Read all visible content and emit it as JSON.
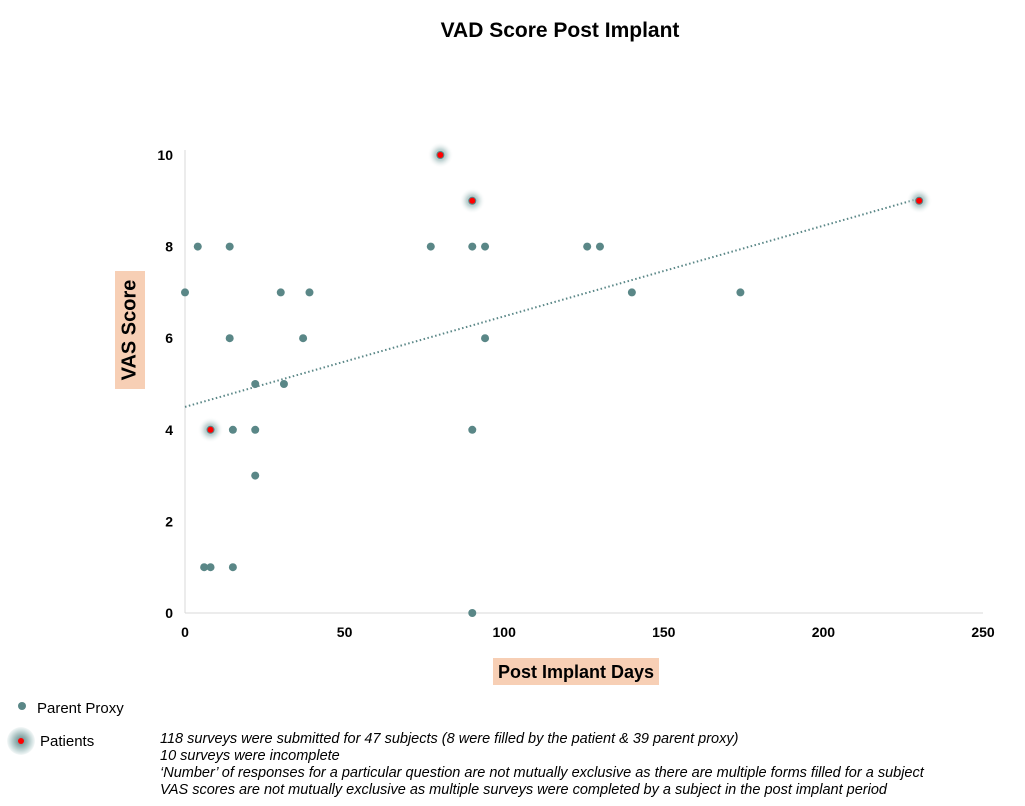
{
  "chart_data": {
    "type": "scatter",
    "title": "VAD Score Post Implant",
    "xlabel": "Post Implant Days",
    "ylabel": "VAS Score",
    "xlim": [
      0,
      250
    ],
    "ylim": [
      0,
      10
    ],
    "x_ticks": [
      "0",
      "50",
      "100",
      "150",
      "200",
      "250"
    ],
    "y_ticks": [
      "0",
      "2",
      "4",
      "6",
      "8",
      "10"
    ],
    "grid": false,
    "legend_placement": "bottom-left",
    "series": [
      {
        "name": "Parent Proxy",
        "color": "#5a8787",
        "points": [
          {
            "x": 0,
            "y": 7
          },
          {
            "x": 4,
            "y": 8
          },
          {
            "x": 14,
            "y": 8
          },
          {
            "x": 14,
            "y": 6
          },
          {
            "x": 30,
            "y": 7
          },
          {
            "x": 39,
            "y": 7
          },
          {
            "x": 37,
            "y": 6
          },
          {
            "x": 22,
            "y": 5
          },
          {
            "x": 31,
            "y": 5
          },
          {
            "x": 15,
            "y": 4
          },
          {
            "x": 22,
            "y": 4
          },
          {
            "x": 22,
            "y": 3
          },
          {
            "x": 6,
            "y": 1
          },
          {
            "x": 8,
            "y": 1
          },
          {
            "x": 15,
            "y": 1
          },
          {
            "x": 77,
            "y": 8
          },
          {
            "x": 90,
            "y": 8
          },
          {
            "x": 94,
            "y": 8
          },
          {
            "x": 94,
            "y": 6
          },
          {
            "x": 90,
            "y": 4
          },
          {
            "x": 90,
            "y": 0
          },
          {
            "x": 126,
            "y": 8
          },
          {
            "x": 130,
            "y": 8
          },
          {
            "x": 140,
            "y": 7
          },
          {
            "x": 174,
            "y": 7
          }
        ]
      },
      {
        "name": "Patients",
        "color": "#ff0000",
        "points": [
          {
            "x": 8,
            "y": 4
          },
          {
            "x": 80,
            "y": 10
          },
          {
            "x": 90,
            "y": 9
          },
          {
            "x": 230,
            "y": 9
          }
        ]
      }
    ],
    "trendline": {
      "type": "linear",
      "style": "dotted",
      "color": "#5a8787",
      "x_start": 0,
      "y_start": 4.5,
      "x_end": 230,
      "y_end": 9.05
    }
  },
  "legend": {
    "items": [
      {
        "label": "Parent Proxy"
      },
      {
        "label": "Patients"
      }
    ]
  },
  "notes": [
    "118 surveys were submitted for 47 subjects (8 were filled by the patient & 39 parent proxy)",
    "10 surveys were incomplete",
    "‘Number’ of responses for a particular question are not mutually exclusive as there are multiple forms filled for a subject",
    "VAS scores are not mutually exclusive as multiple surveys were completed by a subject in the post implant period"
  ]
}
